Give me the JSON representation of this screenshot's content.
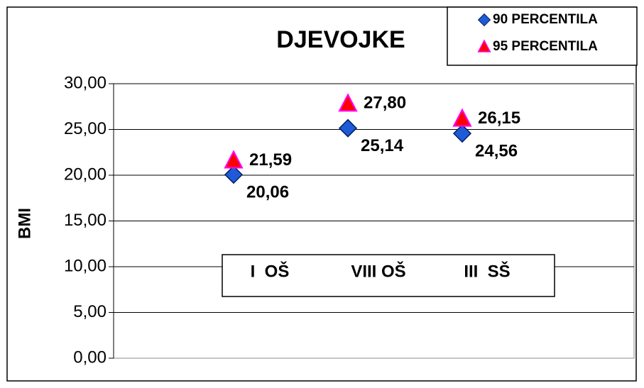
{
  "chart_data": {
    "type": "line",
    "title": "DJEVOJKE",
    "ylabel": "BMI",
    "categories": [
      "I  OŠ",
      "VIII OŠ",
      "III  SŠ"
    ],
    "series": [
      {
        "name": "90 PERCENTILA",
        "color": "#1f5bd8",
        "marker": "diamond",
        "values": [
          20.06,
          25.14,
          24.56
        ],
        "value_labels": [
          "20,06",
          "25,14",
          "24,56"
        ]
      },
      {
        "name": "95 PERCENTILA",
        "color": "#ff0000",
        "marker": "triangle",
        "values": [
          21.59,
          27.8,
          26.15
        ],
        "value_labels": [
          "21,59",
          "27,80",
          "26,15"
        ]
      }
    ],
    "ylim": [
      0,
      30
    ],
    "yticks": [
      {
        "value": 0,
        "label": "0,00"
      },
      {
        "value": 5,
        "label": "5,00"
      },
      {
        "value": 10,
        "label": "10,00"
      },
      {
        "value": 15,
        "label": "15,00"
      },
      {
        "value": 20,
        "label": "20,00"
      },
      {
        "value": 25,
        "label": "25,00"
      },
      {
        "value": 30,
        "label": "30,00"
      }
    ],
    "grid": true,
    "legend": "top-right"
  }
}
